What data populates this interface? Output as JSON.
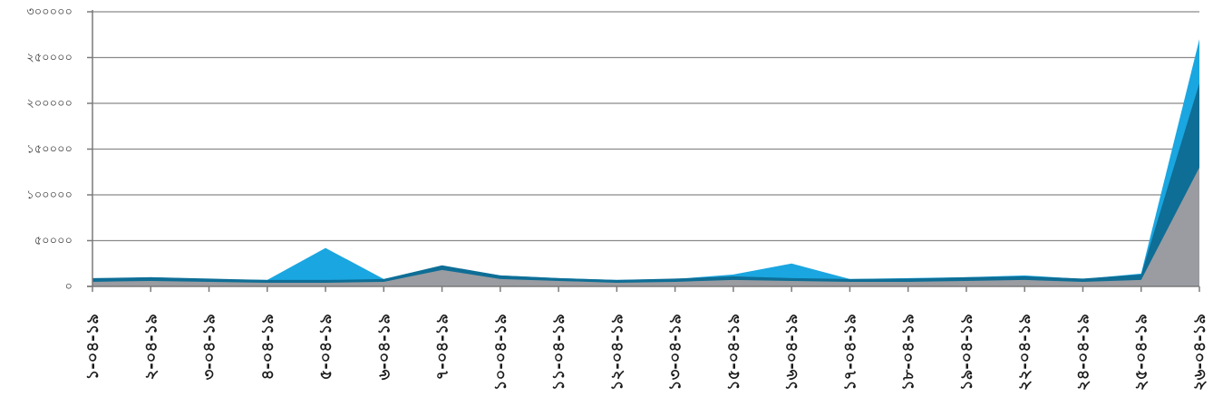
{
  "chart_data": {
    "type": "area",
    "stacked": false,
    "grid": true,
    "legend": "none",
    "ylim": [
      0,
      300000
    ],
    "y_ticks": [
      {
        "value": 0,
        "label": "০"
      },
      {
        "value": 50000,
        "label": "৫০০০০"
      },
      {
        "value": 100000,
        "label": "১০০০০০"
      },
      {
        "value": 150000,
        "label": "১৫০০০০"
      },
      {
        "value": 200000,
        "label": "২০০০০০"
      },
      {
        "value": 250000,
        "label": "২৫০০০০"
      },
      {
        "value": 300000,
        "label": "৩০০০০০"
      }
    ],
    "categories": [
      "১-০৪-১৯",
      "২-০৪-১৯",
      "৩-০৪-১৯",
      "৪-০৪-১৯",
      "৫-০৪-১৯",
      "৬-০৪-১৯",
      "৭-০৪-১৯",
      "১০-০৪-১৯",
      "১১-০৪-১৯",
      "১২-০৪-১৯",
      "১৩-০৪-১৯",
      "১৫-০৪-১৯",
      "১৬-০৪-১৯",
      "১৭-০৪-১৯",
      "১৮-০৪-১৯",
      "১৯-০৪-১৯",
      "২২-০৪-১৯",
      "২৪-০৪-১৯",
      "২৫-০৪-১৯",
      "২৬-০৪-১৯"
    ],
    "series": [
      {
        "color": "#1aa6e0",
        "values": [
          8000,
          10000,
          8000,
          7000,
          42000,
          8000,
          22000,
          12000,
          9000,
          7000,
          8000,
          13000,
          25000,
          8000,
          9000,
          10000,
          12000,
          8000,
          14000,
          270000
        ]
      },
      {
        "color": "#0e6e96",
        "values": [
          9000,
          10000,
          8500,
          7000,
          7000,
          8000,
          23000,
          12000,
          9000,
          7000,
          8500,
          11000,
          9000,
          8000,
          8500,
          10000,
          11000,
          8500,
          13000,
          222000
        ]
      },
      {
        "color": "#9a9ca1",
        "values": [
          5000,
          6000,
          5000,
          4000,
          4000,
          5000,
          18000,
          8000,
          6000,
          4000,
          5000,
          7000,
          6000,
          5000,
          5000,
          6000,
          7000,
          5000,
          7000,
          130000
        ]
      }
    ]
  }
}
